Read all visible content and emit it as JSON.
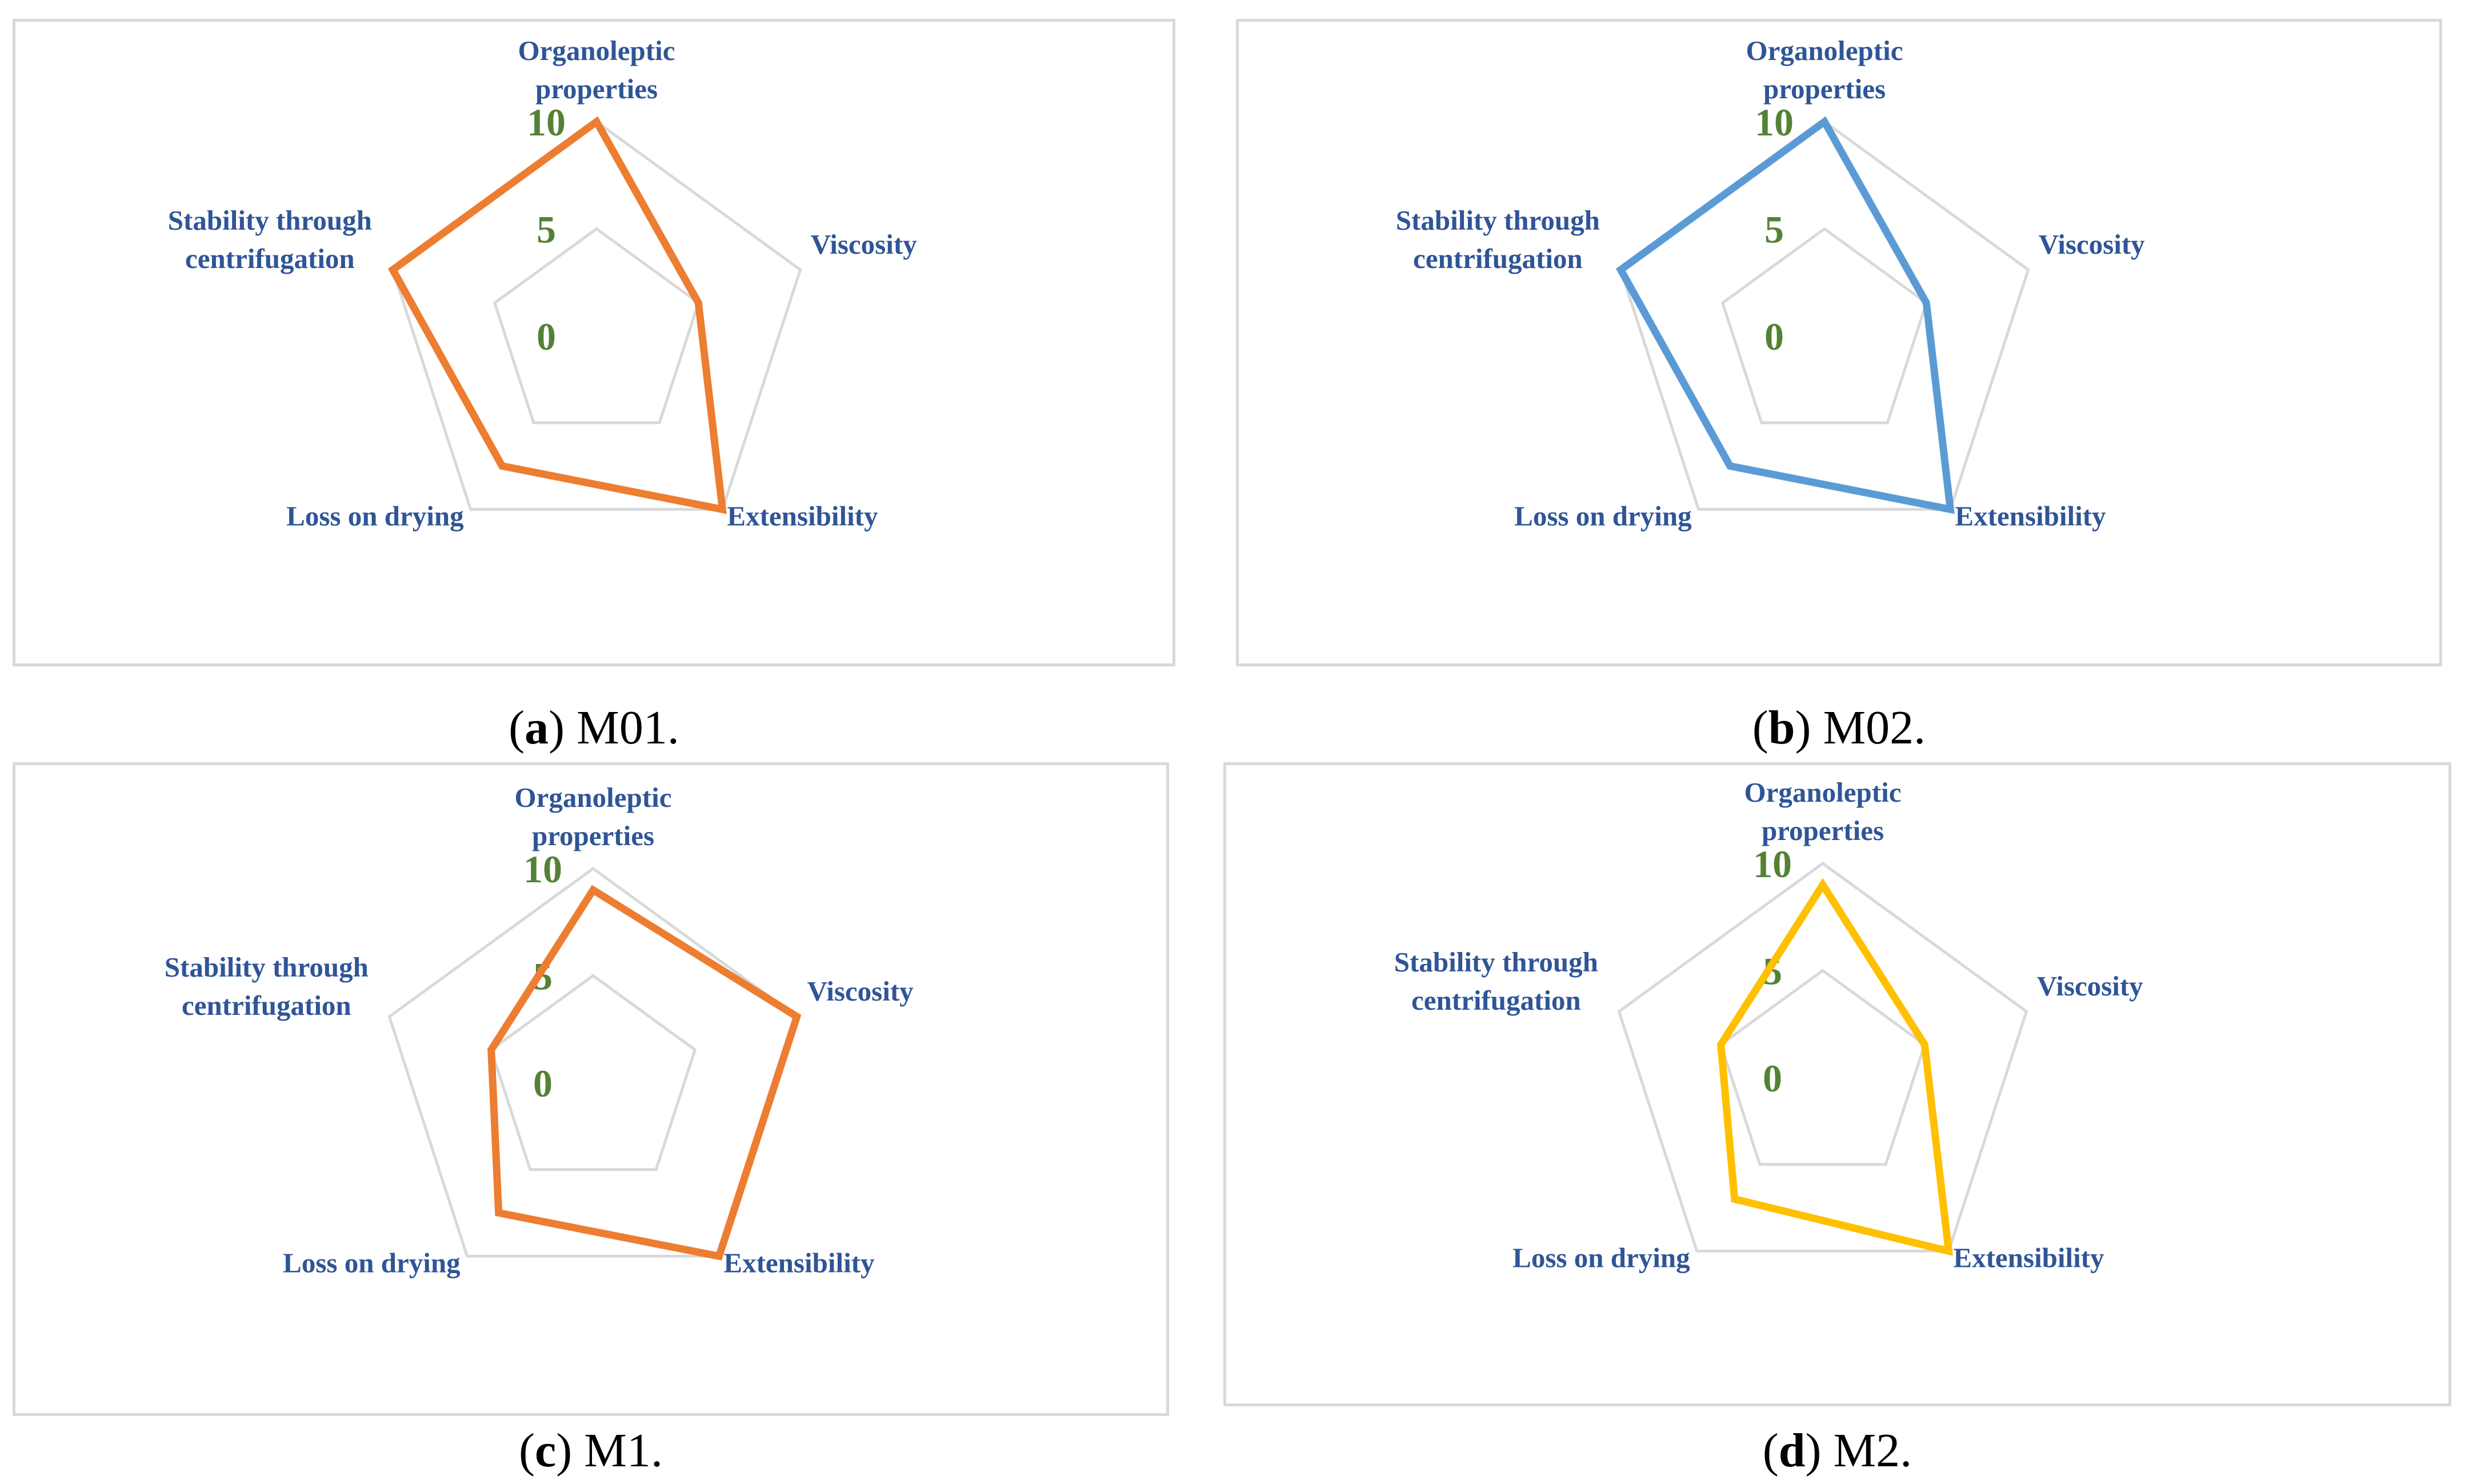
{
  "chart_data": [
    {
      "type": "radar",
      "axes": [
        "Organoleptic\nproperties",
        "Viscosity",
        "Extensibility",
        "Loss on drying",
        "Stability through\ncentrifugation"
      ],
      "range": [
        0,
        10
      ],
      "ticks": [
        "0",
        "5",
        "10"
      ],
      "series": [
        {
          "values": [
            10,
            5,
            10,
            7.5,
            10
          ],
          "color": "#ed7d31"
        }
      ],
      "caption": {
        "letter": "a",
        "text": " M01."
      }
    },
    {
      "type": "radar",
      "axes": [
        "Organoleptic\nproperties",
        "Viscosity",
        "Extensibility",
        "Loss on drying",
        "Stability through\ncentrifugation"
      ],
      "range": [
        0,
        10
      ],
      "ticks": [
        "0",
        "5",
        "10"
      ],
      "series": [
        {
          "values": [
            10,
            5,
            10,
            7.5,
            10
          ],
          "color": "#5b9bd5"
        }
      ],
      "caption": {
        "letter": "b",
        "text": " M02."
      }
    },
    {
      "type": "radar",
      "axes": [
        "Organoleptic\nproperties",
        "Viscosity",
        "Extensibility",
        "Loss on drying",
        "Stability through\ncentrifugation"
      ],
      "range": [
        0,
        10
      ],
      "ticks": [
        "0",
        "5",
        "10"
      ],
      "series": [
        {
          "values": [
            9,
            10,
            10,
            7.5,
            5
          ],
          "color": "#ed7d31"
        }
      ],
      "caption": {
        "letter": "c",
        "text": " M1."
      }
    },
    {
      "type": "radar",
      "axes": [
        "Organoleptic\nproperties",
        "Viscosity",
        "Extensibility",
        "Loss on drying",
        "Stability through\ncentrifugation"
      ],
      "range": [
        0,
        10
      ],
      "ticks": [
        "0",
        "5",
        "10"
      ],
      "series": [
        {
          "values": [
            9,
            5,
            10,
            7,
            5
          ],
          "color": "#ffc000"
        }
      ],
      "caption": {
        "letter": "d",
        "text": " M2."
      }
    }
  ]
}
